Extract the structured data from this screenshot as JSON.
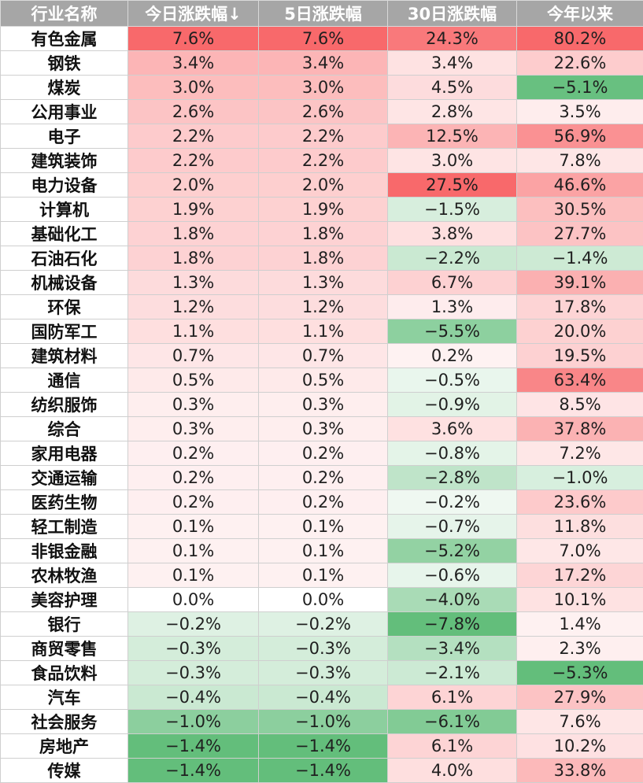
{
  "headers": [
    "行业名称",
    "今日涨跌幅↓",
    "5日涨跌幅",
    "30日涨跌幅",
    "今年以来"
  ],
  "colors": {
    "header_bg": "#a6a6a6",
    "positive_max": "#f8696b",
    "negative_max": "#63be7b",
    "neutral": "#ffffff"
  },
  "rows": [
    {
      "name": "有色金属",
      "today": 7.6,
      "d5": 7.6,
      "d30": 24.3,
      "ytd": 80.2
    },
    {
      "name": "钢铁",
      "today": 3.4,
      "d5": 3.4,
      "d30": 3.4,
      "ytd": 22.6
    },
    {
      "name": "煤炭",
      "today": 3.0,
      "d5": 3.0,
      "d30": 4.5,
      "ytd": -5.1
    },
    {
      "name": "公用事业",
      "today": 2.6,
      "d5": 2.6,
      "d30": 2.8,
      "ytd": 3.5
    },
    {
      "name": "电子",
      "today": 2.2,
      "d5": 2.2,
      "d30": 12.5,
      "ytd": 56.9
    },
    {
      "name": "建筑装饰",
      "today": 2.2,
      "d5": 2.2,
      "d30": 3.0,
      "ytd": 7.8
    },
    {
      "name": "电力设备",
      "today": 2.0,
      "d5": 2.0,
      "d30": 27.5,
      "ytd": 46.6
    },
    {
      "name": "计算机",
      "today": 1.9,
      "d5": 1.9,
      "d30": -1.5,
      "ytd": 30.5
    },
    {
      "name": "基础化工",
      "today": 1.8,
      "d5": 1.8,
      "d30": 3.8,
      "ytd": 27.7
    },
    {
      "name": "石油石化",
      "today": 1.8,
      "d5": 1.8,
      "d30": -2.2,
      "ytd": -1.4
    },
    {
      "name": "机械设备",
      "today": 1.3,
      "d5": 1.3,
      "d30": 6.7,
      "ytd": 39.1
    },
    {
      "name": "环保",
      "today": 1.2,
      "d5": 1.2,
      "d30": 1.3,
      "ytd": 17.8
    },
    {
      "name": "国防军工",
      "today": 1.1,
      "d5": 1.1,
      "d30": -5.5,
      "ytd": 20.0
    },
    {
      "name": "建筑材料",
      "today": 0.7,
      "d5": 0.7,
      "d30": 0.2,
      "ytd": 19.5
    },
    {
      "name": "通信",
      "today": 0.5,
      "d5": 0.5,
      "d30": -0.5,
      "ytd": 63.4
    },
    {
      "name": "纺织服饰",
      "today": 0.3,
      "d5": 0.3,
      "d30": -0.9,
      "ytd": 8.5
    },
    {
      "name": "综合",
      "today": 0.3,
      "d5": 0.3,
      "d30": 3.6,
      "ytd": 37.8
    },
    {
      "name": "家用电器",
      "today": 0.2,
      "d5": 0.2,
      "d30": -0.8,
      "ytd": 7.2
    },
    {
      "name": "交通运输",
      "today": 0.2,
      "d5": 0.2,
      "d30": -2.8,
      "ytd": -1.0
    },
    {
      "name": "医药生物",
      "today": 0.2,
      "d5": 0.2,
      "d30": -0.2,
      "ytd": 23.6
    },
    {
      "name": "轻工制造",
      "today": 0.1,
      "d5": 0.1,
      "d30": -0.7,
      "ytd": 11.8
    },
    {
      "name": "非银金融",
      "today": 0.1,
      "d5": 0.1,
      "d30": -5.2,
      "ytd": 7.0
    },
    {
      "name": "农林牧渔",
      "today": 0.1,
      "d5": 0.1,
      "d30": -0.6,
      "ytd": 17.2
    },
    {
      "name": "美容护理",
      "today": 0.0,
      "d5": 0.0,
      "d30": -4.0,
      "ytd": 10.1
    },
    {
      "name": "银行",
      "today": -0.2,
      "d5": -0.2,
      "d30": -7.8,
      "ytd": 1.4
    },
    {
      "name": "商贸零售",
      "today": -0.3,
      "d5": -0.3,
      "d30": -3.4,
      "ytd": 2.3
    },
    {
      "name": "食品饮料",
      "today": -0.3,
      "d5": -0.3,
      "d30": -2.1,
      "ytd": -5.3
    },
    {
      "name": "汽车",
      "today": -0.4,
      "d5": -0.4,
      "d30": 6.1,
      "ytd": 27.9
    },
    {
      "name": "社会服务",
      "today": -1.0,
      "d5": -1.0,
      "d30": -6.1,
      "ytd": 7.6
    },
    {
      "name": "房地产",
      "today": -1.4,
      "d5": -1.4,
      "d30": 6.1,
      "ytd": 10.2
    },
    {
      "name": "传媒",
      "today": -1.4,
      "d5": -1.4,
      "d30": 4.0,
      "ytd": 33.8
    }
  ]
}
